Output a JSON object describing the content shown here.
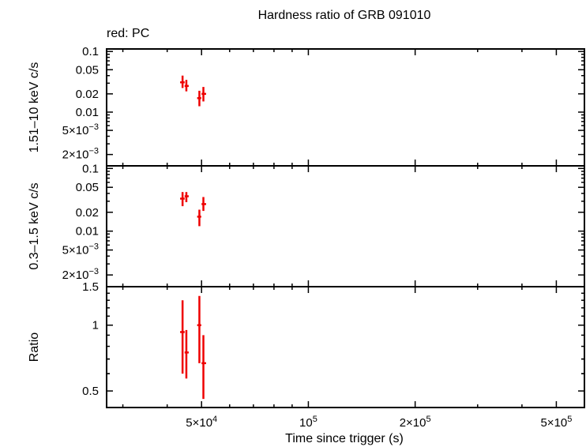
{
  "chart_data": {
    "type": "scatter",
    "title": "Hardness ratio of GRB 091010",
    "legend_note": "red: PC",
    "xlabel": "Time since trigger (s)",
    "x_scale": "log",
    "xlim": [
      27000,
      600000
    ],
    "x_tick_labels": [
      {
        "value": 50000,
        "base": "5×10",
        "exp": "4"
      },
      {
        "value": 100000,
        "base": "10",
        "exp": "5"
      },
      {
        "value": 200000,
        "base": "2×10",
        "exp": "5"
      },
      {
        "value": 500000,
        "base": "5×10",
        "exp": "5"
      }
    ],
    "panels": [
      {
        "name": "hard",
        "ylabel": "1.51–10 keV c/s",
        "y_scale": "log",
        "ylim": [
          0.0013,
          0.11
        ],
        "y_tick_labels": [
          {
            "value": 0.1,
            "text": "0.1"
          },
          {
            "value": 0.05,
            "text": "0.05"
          },
          {
            "value": 0.02,
            "text": "0.02"
          },
          {
            "value": 0.01,
            "text": "0.01"
          },
          {
            "value": 0.005,
            "base": "5×10",
            "exp": "−3"
          },
          {
            "value": 0.002,
            "base": "2×10",
            "exp": "−3"
          }
        ],
        "points": [
          {
            "x": 44200,
            "xerr": [
              700,
              600
            ],
            "y": 0.031,
            "yerr": [
              0.006,
              0.009
            ]
          },
          {
            "x": 45300,
            "xerr": [
              500,
              700
            ],
            "y": 0.027,
            "yerr": [
              0.005,
              0.007
            ]
          },
          {
            "x": 49300,
            "xerr": [
              700,
              600
            ],
            "y": 0.017,
            "yerr": [
              0.0045,
              0.0055
            ]
          },
          {
            "x": 50600,
            "xerr": [
              600,
              900
            ],
            "y": 0.02,
            "yerr": [
              0.005,
              0.006
            ]
          }
        ]
      },
      {
        "name": "soft",
        "ylabel": "0.3–1.5 keV c/s",
        "y_scale": "log",
        "ylim": [
          0.0013,
          0.11
        ],
        "y_tick_labels": [
          {
            "value": 0.1,
            "text": "0.1"
          },
          {
            "value": 0.05,
            "text": "0.05"
          },
          {
            "value": 0.02,
            "text": "0.02"
          },
          {
            "value": 0.01,
            "text": "0.01"
          },
          {
            "value": 0.005,
            "base": "5×10",
            "exp": "−3"
          },
          {
            "value": 0.002,
            "base": "2×10",
            "exp": "−3"
          }
        ],
        "points": [
          {
            "x": 44200,
            "xerr": [
              700,
              600
            ],
            "y": 0.033,
            "yerr": [
              0.008,
              0.009
            ]
          },
          {
            "x": 45300,
            "xerr": [
              500,
              700
            ],
            "y": 0.036,
            "yerr": [
              0.007,
              0.006
            ]
          },
          {
            "x": 49300,
            "xerr": [
              700,
              600
            ],
            "y": 0.017,
            "yerr": [
              0.005,
              0.005
            ]
          },
          {
            "x": 50600,
            "xerr": [
              600,
              900
            ],
            "y": 0.027,
            "yerr": [
              0.006,
              0.008
            ]
          }
        ]
      },
      {
        "name": "ratio",
        "ylabel": "Ratio",
        "y_scale": "log",
        "ylim": [
          0.42,
          1.5
        ],
        "y_tick_labels": [
          {
            "value": 1.5,
            "text": "1.5"
          },
          {
            "value": 1,
            "text": "1"
          },
          {
            "value": 0.5,
            "text": "0.5"
          }
        ],
        "points": [
          {
            "x": 44200,
            "xerr": [
              700,
              600
            ],
            "y": 0.93,
            "yerr": [
              0.33,
              0.37
            ]
          },
          {
            "x": 45300,
            "xerr": [
              500,
              700
            ],
            "y": 0.75,
            "yerr": [
              0.18,
              0.2
            ]
          },
          {
            "x": 49300,
            "xerr": [
              700,
              600
            ],
            "y": 1.0,
            "yerr": [
              0.33,
              0.36
            ]
          },
          {
            "x": 50600,
            "xerr": [
              600,
              900
            ],
            "y": 0.67,
            "yerr": [
              0.21,
              0.23
            ]
          }
        ]
      }
    ]
  }
}
